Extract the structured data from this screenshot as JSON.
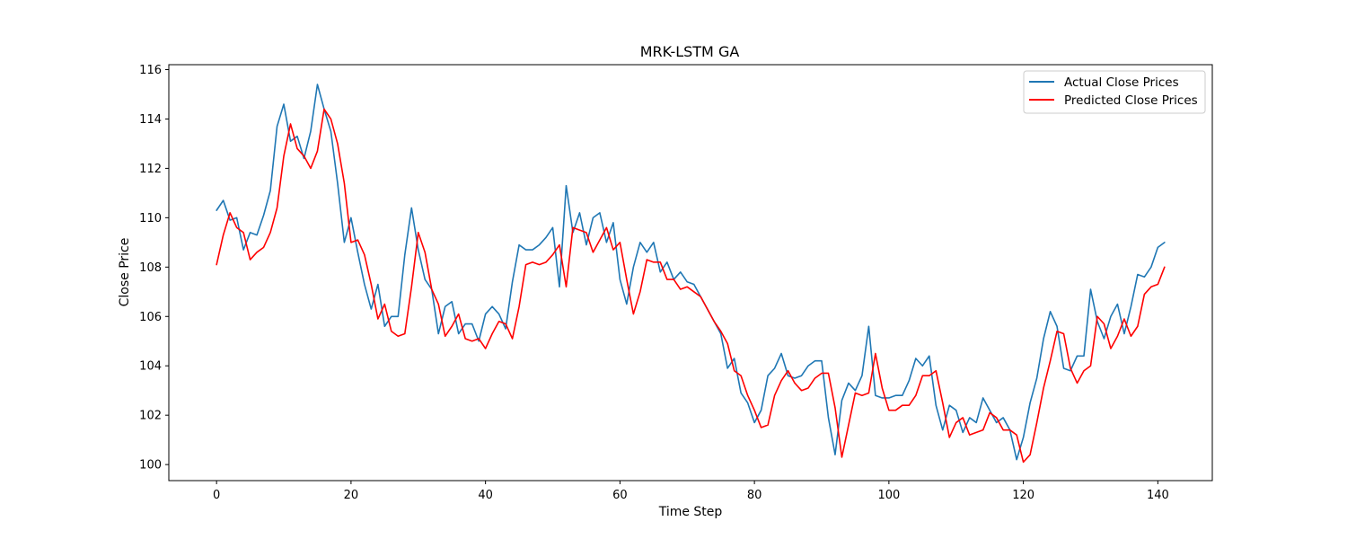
{
  "chart_data": {
    "type": "line",
    "title": "MRK-LSTM GA",
    "xlabel": "Time Step",
    "ylabel": "Close Price",
    "xlim": [
      -7.1,
      148.1
    ],
    "ylim": [
      99.35,
      116.2
    ],
    "xticks": [
      0,
      20,
      40,
      60,
      80,
      100,
      120,
      140
    ],
    "yticks": [
      100,
      102,
      104,
      106,
      108,
      110,
      112,
      114,
      116
    ],
    "grid": false,
    "legend_position": "top-right",
    "series": [
      {
        "name": "Actual Close Prices",
        "color": "#1f77b4",
        "values": [
          110.3,
          110.7,
          109.9,
          110.0,
          108.7,
          109.4,
          109.3,
          110.1,
          111.1,
          113.7,
          114.6,
          113.1,
          113.3,
          112.4,
          113.5,
          115.4,
          114.4,
          113.5,
          111.4,
          109.0,
          110.0,
          108.6,
          107.3,
          106.3,
          107.3,
          105.6,
          106.0,
          106.0,
          108.5,
          110.4,
          108.7,
          107.5,
          107.1,
          105.3,
          106.4,
          106.6,
          105.3,
          105.7,
          105.7,
          105.0,
          106.1,
          106.4,
          106.1,
          105.5,
          107.4,
          108.9,
          108.7,
          108.7,
          108.9,
          109.2,
          109.6,
          107.2,
          111.3,
          109.4,
          110.2,
          108.9,
          110.0,
          110.2,
          109.0,
          109.8,
          107.5,
          106.5,
          108.0,
          109.0,
          108.6,
          109.0,
          107.8,
          108.2,
          107.5,
          107.8,
          107.4,
          107.3,
          106.8,
          106.3,
          105.8,
          105.3,
          103.9,
          104.3,
          102.9,
          102.5,
          101.7,
          102.2,
          103.6,
          103.9,
          104.5,
          103.6,
          103.5,
          103.6,
          104.0,
          104.2,
          104.2,
          101.9,
          100.4,
          102.6,
          103.3,
          103.0,
          103.6,
          105.6,
          102.8,
          102.7,
          102.7,
          102.8,
          102.8,
          103.4,
          104.3,
          104.0,
          104.4,
          102.4,
          101.4,
          102.4,
          102.2,
          101.3,
          101.9,
          101.7,
          102.7,
          102.2,
          101.7,
          101.9,
          101.4,
          100.2,
          101.1,
          102.5,
          103.5,
          105.1,
          106.2,
          105.6,
          103.9,
          103.8,
          104.4,
          104.4,
          107.1,
          105.8,
          105.1,
          106.0,
          106.5,
          105.3,
          106.4,
          107.7,
          107.6,
          108.0,
          108.8,
          109.0
        ]
      },
      {
        "name": "Predicted Close Prices",
        "color": "#ff0000",
        "values": [
          108.1,
          109.3,
          110.2,
          109.6,
          109.4,
          108.3,
          108.6,
          108.8,
          109.4,
          110.4,
          112.5,
          113.8,
          112.8,
          112.5,
          112.0,
          112.7,
          114.4,
          114.0,
          113.0,
          111.4,
          109.0,
          109.1,
          108.5,
          107.3,
          105.9,
          106.5,
          105.4,
          105.2,
          105.3,
          107.2,
          109.4,
          108.6,
          107.1,
          106.5,
          105.2,
          105.6,
          106.1,
          105.1,
          105.0,
          105.1,
          104.7,
          105.3,
          105.8,
          105.7,
          105.1,
          106.4,
          108.1,
          108.2,
          108.1,
          108.2,
          108.5,
          108.9,
          107.2,
          109.6,
          109.5,
          109.4,
          108.6,
          109.1,
          109.6,
          108.7,
          109.0,
          107.5,
          106.1,
          107.0,
          108.3,
          108.2,
          108.2,
          107.5,
          107.5,
          107.1,
          107.2,
          107.0,
          106.8,
          106.3,
          105.8,
          105.4,
          104.9,
          103.8,
          103.6,
          102.8,
          102.2,
          101.5,
          101.6,
          102.8,
          103.4,
          103.8,
          103.3,
          103.0,
          103.1,
          103.5,
          103.7,
          103.7,
          102.3,
          100.3,
          101.6,
          102.9,
          102.8,
          102.9,
          104.5,
          103.1,
          102.2,
          102.2,
          102.4,
          102.4,
          102.8,
          103.6,
          103.6,
          103.8,
          102.5,
          101.1,
          101.7,
          101.9,
          101.2,
          101.3,
          101.4,
          102.1,
          101.9,
          101.4,
          101.4,
          101.2,
          100.1,
          100.4,
          101.7,
          103.1,
          104.2,
          105.4,
          105.3,
          103.9,
          103.3,
          103.8,
          104.0,
          106.0,
          105.7,
          104.7,
          105.2,
          105.9,
          105.2,
          105.6,
          106.9,
          107.2,
          107.3,
          108.0
        ]
      }
    ]
  }
}
